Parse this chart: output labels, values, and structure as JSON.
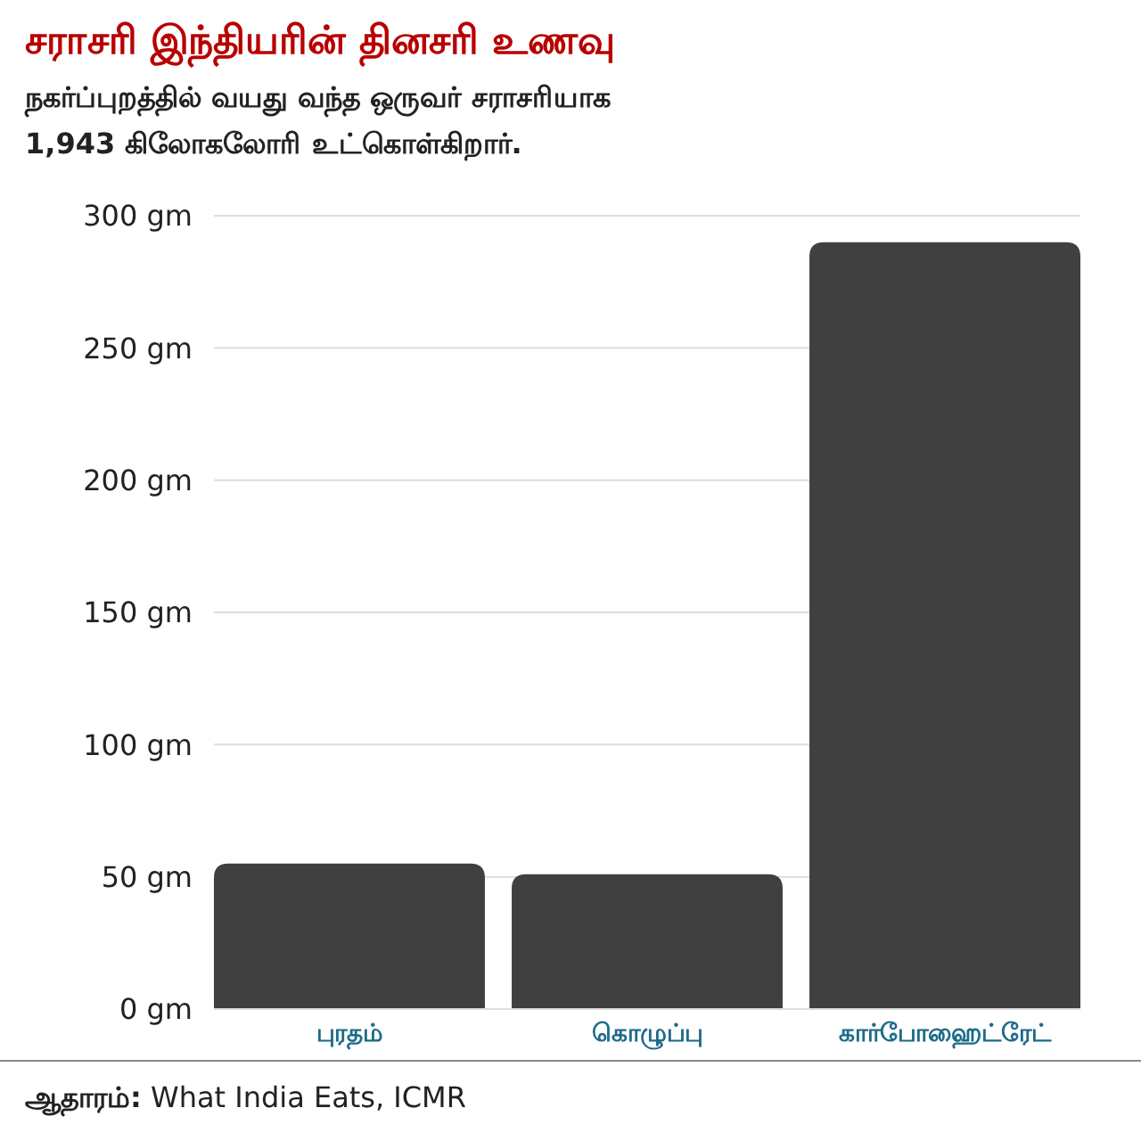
{
  "chart_data": {
    "type": "bar",
    "title": "சராசரி இந்தியரின் தினசரி உணவு",
    "subtitle": "நகர்ப்புறத்தில் வயது வந்த ஒருவர் சராசரியாக\n1,943 கிலோகலோரி உட்கொள்கிறார்.",
    "categories": [
      "புரதம்",
      "கொழுப்பு",
      "கார்போஹைட்ரேட்"
    ],
    "values": [
      55,
      51,
      290
    ],
    "color": "#404040",
    "ylim": [
      0,
      300
    ],
    "yticks": [
      {
        "value": 0,
        "label": "0 gm"
      },
      {
        "value": 50,
        "label": "50 gm"
      },
      {
        "value": 100,
        "label": "100 gm"
      },
      {
        "value": 150,
        "label": "150 gm"
      },
      {
        "value": 200,
        "label": "200 gm"
      },
      {
        "value": 250,
        "label": "250 gm"
      },
      {
        "value": 300,
        "label": "300 gm"
      }
    ],
    "grid": "y",
    "annotations": [
      "ஆதாரம்: What India Eats, ICMR"
    ]
  }
}
